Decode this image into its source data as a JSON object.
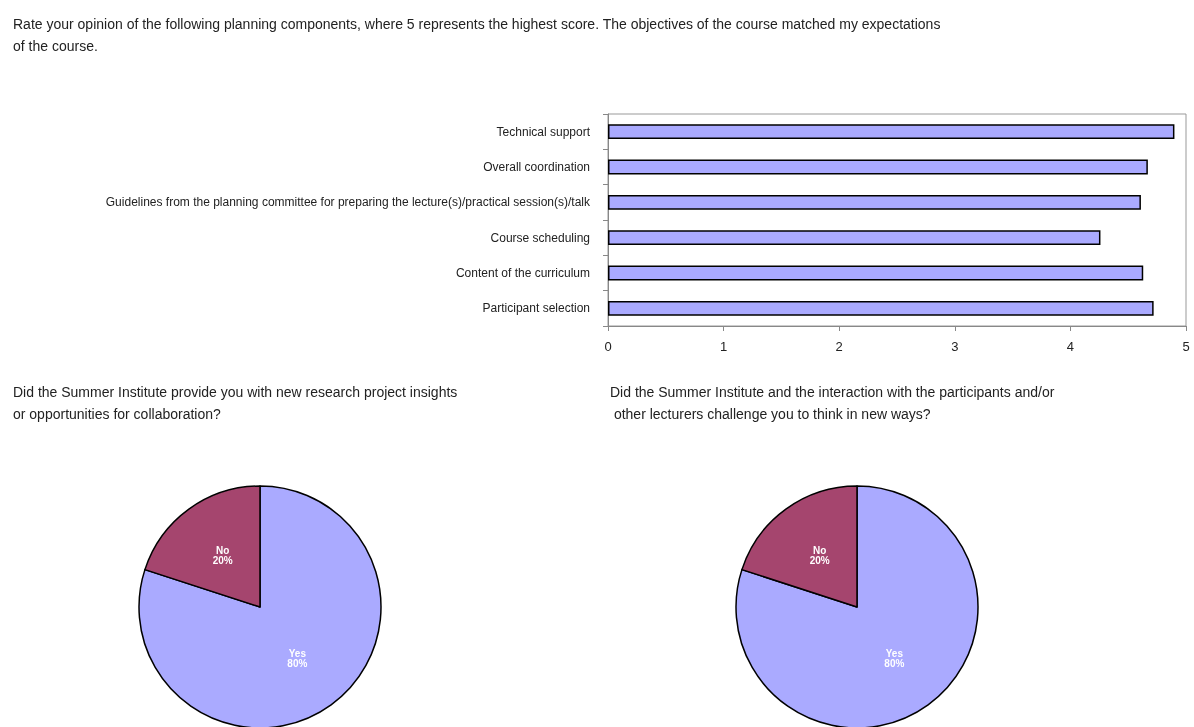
{
  "chart_data": [
    {
      "type": "bar",
      "orientation": "horizontal",
      "title": "Rate your opinion of the following planning components, where 5 represents the highest score. The objectives of the course matched my expectations of the course.",
      "categories": [
        "Technical support",
        "Overall coordination",
        "Guidelines from the planning committee for preparing the lecture(s)/practical session(s)/talk",
        "Course scheduling",
        "Content of the curriculum",
        "Participant selection"
      ],
      "values": [
        4.9,
        4.67,
        4.61,
        4.26,
        4.63,
        4.72
      ],
      "color": "#aaaaff",
      "xlim": [
        0,
        5
      ],
      "xticks": [
        0,
        1,
        2,
        3,
        4,
        5
      ],
      "grid": false,
      "legend": false
    },
    {
      "type": "pie",
      "title": "Did the Summer Institute provide you with new research project insights or opportunities for collaboration?",
      "categories": [
        "Yes",
        "No"
      ],
      "values": [
        80,
        20
      ],
      "colors": [
        "#aaaaff",
        "#a5456e"
      ],
      "value_labels": [
        "80%",
        "20%"
      ],
      "legend": false
    },
    {
      "type": "pie",
      "title": "Did the Summer Institute and the interaction with the participants and/or other lecturers challenge you to think in new ways?",
      "categories": [
        "Yes",
        "No"
      ],
      "values": [
        80,
        20
      ],
      "colors": [
        "#aaaaff",
        "#a5456e"
      ],
      "value_labels": [
        "80%",
        "20%"
      ],
      "legend": false
    }
  ]
}
